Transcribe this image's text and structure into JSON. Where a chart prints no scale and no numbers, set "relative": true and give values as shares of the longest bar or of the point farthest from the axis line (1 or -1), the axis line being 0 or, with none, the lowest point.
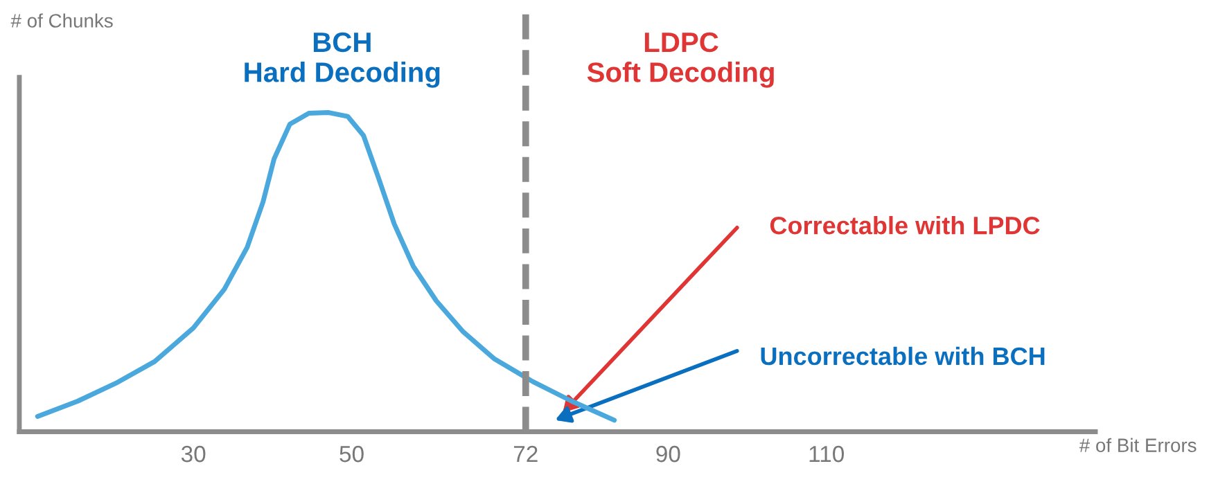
{
  "chart_data": {
    "type": "line",
    "relative": true,
    "xlabel": "# of Bit Errors",
    "ylabel": "# of Chunks",
    "x": [
      10.3,
      15.4,
      20.2,
      25.1,
      30,
      33.9,
      36.8,
      38.8,
      40.2,
      42.2,
      44.6,
      47.1,
      49.5,
      51.5,
      53.4,
      55.4,
      57.8,
      60.7,
      64.1,
      68,
      72.9,
      77.8,
      83.2
    ],
    "series": [
      {
        "color": "#4aa8dc",
        "values": [
          0.048,
          0.096,
          0.152,
          0.22,
          0.325,
          0.446,
          0.578,
          0.72,
          0.855,
          0.964,
          0.998,
          1,
          0.988,
          0.928,
          0.795,
          0.65,
          0.518,
          0.41,
          0.313,
          0.229,
          0.157,
          0.096,
          0.036
        ]
      }
    ],
    "xlim": [
      8,
      144
    ],
    "xticks": [
      30,
      50,
      72,
      90,
      110
    ],
    "ref_lines": [
      {
        "axis": "x",
        "value": 72,
        "color": "#8c8c8c",
        "line_style": "dashed"
      }
    ],
    "annotations": [
      "BCH\nHard Decoding",
      "LDPC\nSoft Decoding",
      "Correctable with LPDC",
      "Uncorrectable with BCH"
    ],
    "grid": false,
    "legend": false,
    "marker": "none",
    "line_style": "solid"
  }
}
